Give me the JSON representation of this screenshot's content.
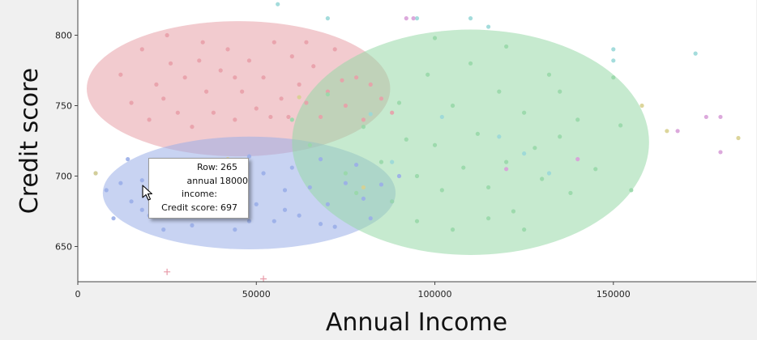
{
  "chart_data": {
    "type": "scatter",
    "title": "",
    "xlabel": "Annual Income",
    "ylabel": "Credit score",
    "xlim": [
      0,
      190000
    ],
    "ylim": [
      625,
      825
    ],
    "xticks": [
      0,
      50000,
      100000,
      150000
    ],
    "yticks": [
      650,
      700,
      750,
      800
    ],
    "grid": false,
    "legend": "none",
    "series": [
      {
        "color": "#e8a0a8",
        "points": [
          [
            12000,
            772
          ],
          [
            15000,
            752
          ],
          [
            18000,
            790
          ],
          [
            20000,
            740
          ],
          [
            22000,
            765
          ],
          [
            25000,
            800
          ],
          [
            26000,
            780
          ],
          [
            28000,
            745
          ],
          [
            30000,
            770
          ],
          [
            32000,
            735
          ],
          [
            35000,
            795
          ],
          [
            36000,
            760
          ],
          [
            38000,
            745
          ],
          [
            40000,
            775
          ],
          [
            42000,
            790
          ],
          [
            44000,
            740
          ],
          [
            46000,
            760
          ],
          [
            48000,
            782
          ],
          [
            50000,
            748
          ],
          [
            52000,
            770
          ],
          [
            55000,
            795
          ],
          [
            57000,
            755
          ],
          [
            59000,
            742
          ],
          [
            60000,
            785
          ],
          [
            62000,
            765
          ],
          [
            64000,
            752
          ],
          [
            66000,
            778
          ],
          [
            68000,
            742
          ],
          [
            70000,
            760
          ],
          [
            72000,
            790
          ],
          [
            75000,
            750
          ],
          [
            78000,
            770
          ],
          [
            80000,
            740
          ],
          [
            82000,
            765
          ],
          [
            85000,
            755
          ],
          [
            88000,
            745
          ],
          [
            24000,
            755
          ],
          [
            34000,
            782
          ],
          [
            44000,
            770
          ],
          [
            54000,
            742
          ],
          [
            64000,
            795
          ],
          [
            74000,
            768
          ]
        ]
      },
      {
        "color": "#9aaee8",
        "points": [
          [
            5000,
            702
          ],
          [
            8000,
            690
          ],
          [
            10000,
            670
          ],
          [
            12000,
            695
          ],
          [
            14000,
            712
          ],
          [
            15000,
            682
          ],
          [
            18000,
            697
          ],
          [
            20000,
            672
          ],
          [
            22000,
            705
          ],
          [
            24000,
            662
          ],
          [
            25000,
            690
          ],
          [
            28000,
            678
          ],
          [
            30000,
            700
          ],
          [
            32000,
            665
          ],
          [
            34000,
            692
          ],
          [
            36000,
            710
          ],
          [
            38000,
            673
          ],
          [
            40000,
            685
          ],
          [
            42000,
            700
          ],
          [
            44000,
            662
          ],
          [
            46000,
            692
          ],
          [
            48000,
            714
          ],
          [
            50000,
            680
          ],
          [
            52000,
            702
          ],
          [
            55000,
            668
          ],
          [
            58000,
            690
          ],
          [
            60000,
            706
          ],
          [
            62000,
            672
          ],
          [
            65000,
            692
          ],
          [
            68000,
            712
          ],
          [
            70000,
            680
          ],
          [
            72000,
            664
          ],
          [
            75000,
            695
          ],
          [
            78000,
            708
          ],
          [
            80000,
            684
          ],
          [
            82000,
            670
          ],
          [
            85000,
            694
          ],
          [
            88000,
            682
          ],
          [
            90000,
            700
          ],
          [
            18000,
            676
          ],
          [
            28000,
            704
          ],
          [
            38000,
            694
          ],
          [
            48000,
            668
          ],
          [
            58000,
            676
          ],
          [
            68000,
            666
          ]
        ]
      },
      {
        "color": "#98d8a8",
        "points": [
          [
            60000,
            740
          ],
          [
            65000,
            722
          ],
          [
            70000,
            758
          ],
          [
            75000,
            702
          ],
          [
            78000,
            688
          ],
          [
            80000,
            735
          ],
          [
            85000,
            710
          ],
          [
            88000,
            682
          ],
          [
            90000,
            752
          ],
          [
            92000,
            726
          ],
          [
            95000,
            700
          ],
          [
            98000,
            772
          ],
          [
            100000,
            722
          ],
          [
            102000,
            690
          ],
          [
            105000,
            750
          ],
          [
            108000,
            706
          ],
          [
            110000,
            780
          ],
          [
            112000,
            730
          ],
          [
            115000,
            692
          ],
          [
            118000,
            760
          ],
          [
            120000,
            710
          ],
          [
            122000,
            675
          ],
          [
            125000,
            745
          ],
          [
            128000,
            720
          ],
          [
            130000,
            698
          ],
          [
            132000,
            772
          ],
          [
            135000,
            728
          ],
          [
            138000,
            688
          ],
          [
            140000,
            740
          ],
          [
            145000,
            705
          ],
          [
            150000,
            770
          ],
          [
            152000,
            736
          ],
          [
            155000,
            690
          ],
          [
            95000,
            668
          ],
          [
            105000,
            662
          ],
          [
            115000,
            670
          ],
          [
            125000,
            662
          ],
          [
            100000,
            798
          ],
          [
            120000,
            792
          ],
          [
            135000,
            760
          ]
        ]
      },
      {
        "color": "#9ad8d8",
        "points": [
          [
            56000,
            822
          ],
          [
            70000,
            812
          ],
          [
            95000,
            812
          ],
          [
            110000,
            812
          ],
          [
            115000,
            806
          ],
          [
            150000,
            790
          ],
          [
            173000,
            787
          ],
          [
            150000,
            782
          ],
          [
            82000,
            744
          ],
          [
            88000,
            710
          ],
          [
            102000,
            742
          ],
          [
            118000,
            728
          ],
          [
            125000,
            716
          ],
          [
            132000,
            702
          ]
        ]
      },
      {
        "color": "#d8a0d8",
        "points": [
          [
            176000,
            742
          ],
          [
            180000,
            742
          ],
          [
            180000,
            717
          ],
          [
            140000,
            712
          ],
          [
            120000,
            705
          ],
          [
            92000,
            812
          ],
          [
            94000,
            812
          ],
          [
            168000,
            732
          ]
        ]
      },
      {
        "color": "#d8d090",
        "points": [
          [
            165000,
            732
          ],
          [
            185000,
            727
          ],
          [
            5000,
            702
          ],
          [
            158000,
            750
          ],
          [
            42000,
            712
          ],
          [
            62000,
            756
          ],
          [
            80000,
            692
          ]
        ]
      }
    ],
    "plus_markers": [
      [
        25000,
        632
      ],
      [
        52000,
        627
      ]
    ],
    "ellipses": [
      {
        "color": "#e8a0a8",
        "cx": 45000,
        "cy": 762,
        "rx": 42500,
        "ry": 48
      },
      {
        "color": "#9aaee8",
        "cx": 48000,
        "cy": 688,
        "rx": 41000,
        "ry": 40
      },
      {
        "color": "#98d8a8",
        "cx": 110000,
        "cy": 724,
        "rx": 50000,
        "ry": 80
      }
    ]
  },
  "tooltip": {
    "row_label": "Row:",
    "row_value": "265",
    "income_label": "annual income:",
    "income_value": "18000",
    "score_label": "Credit score:",
    "score_value": "697"
  }
}
